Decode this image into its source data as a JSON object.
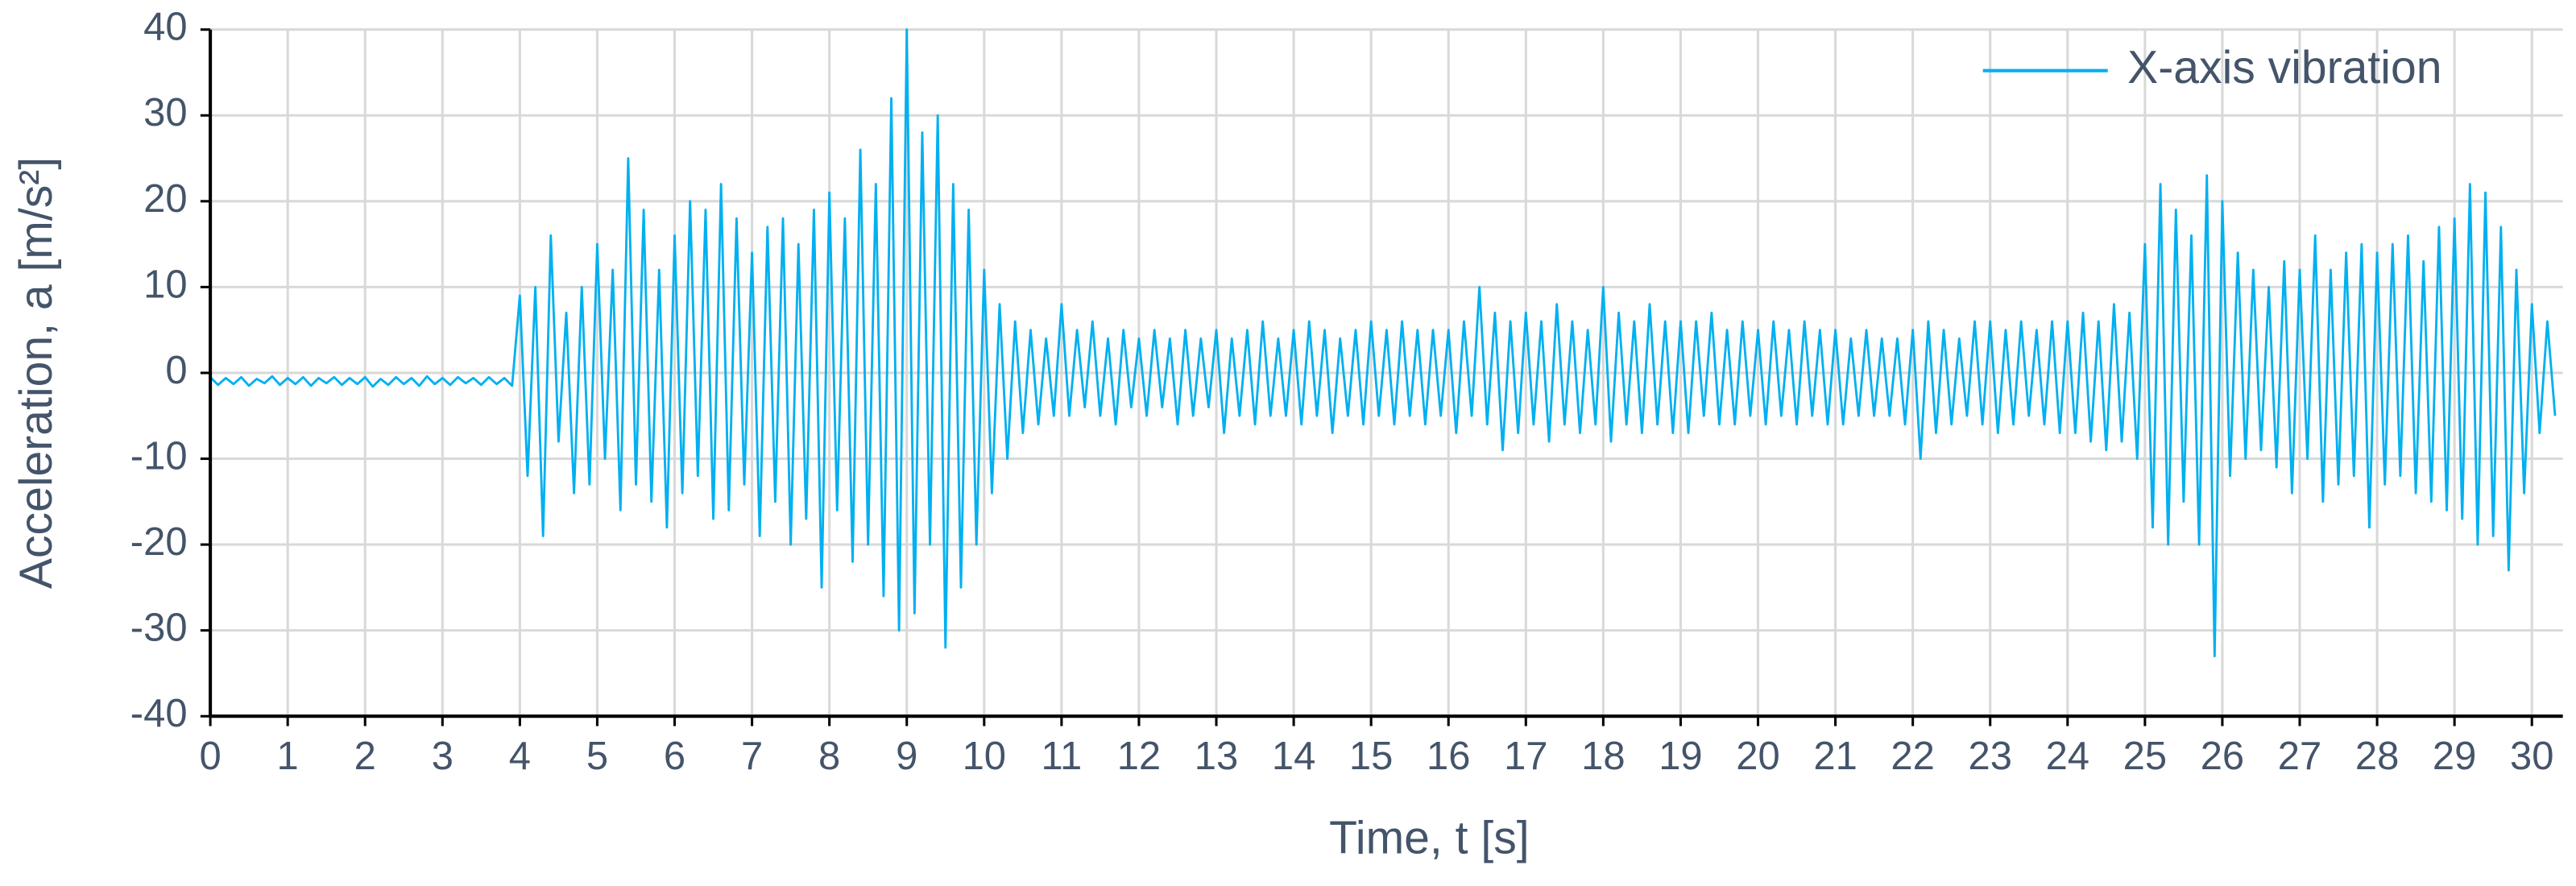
{
  "chart_data": {
    "type": "line",
    "x_label": "Time, t [s]",
    "y_label": "Acceleration, a [m/s²]",
    "x": [
      0,
      0.1,
      0.2,
      0.3,
      0.4,
      0.5,
      0.6,
      0.7,
      0.8,
      0.9,
      1,
      1.1,
      1.2,
      1.3,
      1.4,
      1.5,
      1.6,
      1.7,
      1.8,
      1.9,
      2,
      2.1,
      2.2,
      2.3,
      2.4,
      2.5,
      2.6,
      2.7,
      2.8,
      2.9,
      3,
      3.1,
      3.2,
      3.3,
      3.4,
      3.5,
      3.6,
      3.7,
      3.8,
      3.9,
      4,
      4.1,
      4.2,
      4.3,
      4.4,
      4.5,
      4.6,
      4.7,
      4.8,
      4.9,
      5,
      5.1,
      5.2,
      5.3,
      5.4,
      5.5,
      5.6,
      5.7,
      5.8,
      5.9,
      6,
      6.1,
      6.2,
      6.3,
      6.4,
      6.5,
      6.6,
      6.7,
      6.8,
      6.9,
      7,
      7.1,
      7.2,
      7.3,
      7.4,
      7.5,
      7.6,
      7.7,
      7.8,
      7.9,
      8,
      8.1,
      8.2,
      8.3,
      8.4,
      8.5,
      8.6,
      8.7,
      8.8,
      8.9,
      9,
      9.1,
      9.2,
      9.3,
      9.4,
      9.5,
      9.6,
      9.7,
      9.8,
      9.9,
      10,
      10.1,
      10.2,
      10.3,
      10.4,
      10.5,
      10.6,
      10.7,
      10.8,
      10.9,
      11,
      11.1,
      11.2,
      11.3,
      11.4,
      11.5,
      11.6,
      11.7,
      11.8,
      11.9,
      12,
      12.1,
      12.2,
      12.3,
      12.4,
      12.5,
      12.6,
      12.7,
      12.8,
      12.9,
      13,
      13.1,
      13.2,
      13.3,
      13.4,
      13.5,
      13.6,
      13.7,
      13.8,
      13.9,
      14,
      14.1,
      14.2,
      14.3,
      14.4,
      14.5,
      14.6,
      14.7,
      14.8,
      14.9,
      15,
      15.1,
      15.2,
      15.3,
      15.4,
      15.5,
      15.6,
      15.7,
      15.8,
      15.9,
      16,
      16.1,
      16.2,
      16.3,
      16.4,
      16.5,
      16.6,
      16.7,
      16.8,
      16.9,
      17,
      17.1,
      17.2,
      17.3,
      17.4,
      17.5,
      17.6,
      17.7,
      17.8,
      17.9,
      18,
      18.1,
      18.2,
      18.3,
      18.4,
      18.5,
      18.6,
      18.7,
      18.8,
      18.9,
      19,
      19.1,
      19.2,
      19.3,
      19.4,
      19.5,
      19.6,
      19.7,
      19.8,
      19.9,
      20,
      20.1,
      20.2,
      20.3,
      20.4,
      20.5,
      20.6,
      20.7,
      20.8,
      20.9,
      21,
      21.1,
      21.2,
      21.3,
      21.4,
      21.5,
      21.6,
      21.7,
      21.8,
      21.9,
      22,
      22.1,
      22.2,
      22.3,
      22.4,
      22.5,
      22.6,
      22.7,
      22.8,
      22.9,
      23,
      23.1,
      23.2,
      23.3,
      23.4,
      23.5,
      23.6,
      23.7,
      23.8,
      23.9,
      24,
      24.1,
      24.2,
      24.3,
      24.4,
      24.5,
      24.6,
      24.7,
      24.8,
      24.9,
      25,
      25.1,
      25.2,
      25.3,
      25.4,
      25.5,
      25.6,
      25.7,
      25.8,
      25.9,
      26,
      26.1,
      26.2,
      26.3,
      26.4,
      26.5,
      26.6,
      26.7,
      26.8,
      26.9,
      27,
      27.1,
      27.2,
      27.3,
      27.4,
      27.5,
      27.6,
      27.7,
      27.8,
      27.9,
      28,
      28.1,
      28.2,
      28.3,
      28.4,
      28.5,
      28.6,
      28.7,
      28.8,
      28.9,
      29,
      29.1,
      29.2,
      29.3,
      29.4,
      29.5,
      29.6,
      29.7,
      29.8,
      29.9,
      30,
      30.1,
      30.2,
      30.3
    ],
    "series": [
      {
        "name": "X-axis vibration",
        "color": "#00b0f0",
        "values": [
          -0.5,
          -1.4,
          -0.6,
          -1.3,
          -0.5,
          -1.5,
          -0.7,
          -1.2,
          -0.4,
          -1.4,
          -0.6,
          -1.3,
          -0.5,
          -1.5,
          -0.6,
          -1.2,
          -0.5,
          -1.4,
          -0.6,
          -1.3,
          -0.5,
          -1.6,
          -0.7,
          -1.4,
          -0.5,
          -1.3,
          -0.6,
          -1.5,
          -0.4,
          -1.3,
          -0.6,
          -1.4,
          -0.5,
          -1.2,
          -0.6,
          -1.4,
          -0.5,
          -1.3,
          -0.6,
          -1.5,
          9,
          -12,
          10,
          -19,
          16,
          -8,
          7,
          -14,
          10,
          -13,
          15,
          -10,
          12,
          -16,
          25,
          -13,
          19,
          -15,
          12,
          -18,
          16,
          -14,
          20,
          -12,
          19,
          -17,
          22,
          -16,
          18,
          -13,
          14,
          -19,
          17,
          -15,
          18,
          -20,
          15,
          -17,
          19,
          -25,
          21,
          -16,
          18,
          -22,
          26,
          -20,
          22,
          -26,
          32,
          -30,
          40,
          -28,
          28,
          -20,
          30,
          -32,
          22,
          -25,
          19,
          -20,
          12,
          -14,
          8,
          -10,
          6,
          -7,
          5,
          -6,
          4,
          -5,
          8,
          -5,
          5,
          -4,
          6,
          -5,
          4,
          -6,
          5,
          -4,
          4,
          -5,
          5,
          -4,
          4,
          -6,
          5,
          -5,
          4,
          -4,
          5,
          -7,
          4,
          -5,
          5,
          -6,
          6,
          -5,
          4,
          -5,
          5,
          -6,
          6,
          -5,
          5,
          -7,
          4,
          -5,
          5,
          -6,
          6,
          -5,
          5,
          -6,
          6,
          -5,
          5,
          -6,
          5,
          -5,
          5,
          -7,
          6,
          -5,
          10,
          -6,
          7,
          -9,
          6,
          -7,
          7,
          -6,
          6,
          -8,
          8,
          -6,
          6,
          -7,
          5,
          -6,
          10,
          -8,
          7,
          -6,
          6,
          -7,
          8,
          -6,
          6,
          -7,
          6,
          -7,
          6,
          -5,
          7,
          -6,
          5,
          -6,
          6,
          -5,
          5,
          -6,
          6,
          -5,
          5,
          -6,
          6,
          -5,
          5,
          -6,
          5,
          -6,
          4,
          -5,
          5,
          -5,
          4,
          -5,
          4,
          -6,
          5,
          -10,
          6,
          -7,
          5,
          -6,
          4,
          -5,
          6,
          -6,
          6,
          -7,
          5,
          -6,
          6,
          -5,
          5,
          -6,
          6,
          -7,
          6,
          -7,
          7,
          -8,
          6,
          -9,
          8,
          -8,
          7,
          -10,
          15,
          -18,
          22,
          -20,
          19,
          -15,
          16,
          -20,
          23,
          -33,
          20,
          -12,
          14,
          -10,
          12,
          -9,
          10,
          -11,
          13,
          -14,
          12,
          -10,
          16,
          -15,
          12,
          -13,
          14,
          -12,
          15,
          -18,
          14,
          -13,
          15,
          -12,
          16,
          -14,
          13,
          -15,
          17,
          -16,
          18,
          -17,
          22,
          -20,
          21,
          -19,
          17,
          -23,
          12,
          -14,
          8,
          -7,
          6,
          -5
        ]
      }
    ],
    "xlim": [
      0,
      30.4
    ],
    "ylim": [
      -40,
      40
    ],
    "xticks": [
      0,
      1,
      2,
      3,
      4,
      5,
      6,
      7,
      8,
      9,
      10,
      11,
      12,
      13,
      14,
      15,
      16,
      17,
      18,
      19,
      20,
      21,
      22,
      23,
      24,
      25,
      26,
      27,
      28,
      29,
      30
    ],
    "yticks": [
      -40,
      -30,
      -20,
      -10,
      0,
      10,
      20,
      30,
      40
    ],
    "grid": true,
    "legend_position": "upper right"
  }
}
